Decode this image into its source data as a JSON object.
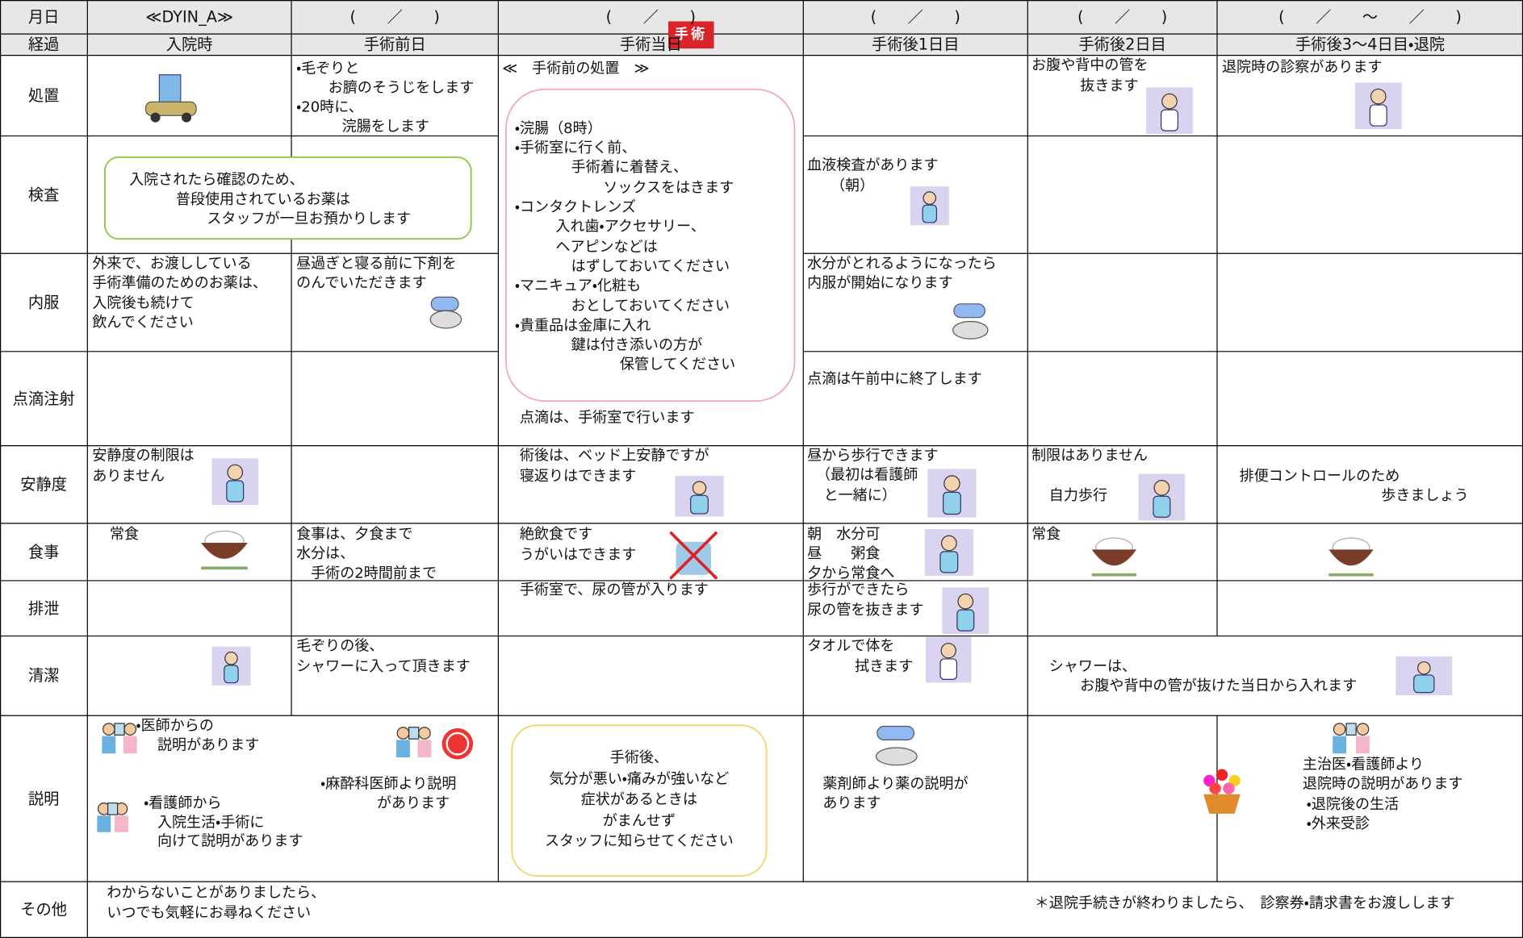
{
  "header": {
    "dates": [
      "月日",
      "≪DYIN_A≫",
      "(　　／　　)",
      "(　　／　　)",
      "(　　／　　)",
      "(　　／　　)",
      "(　　／　　～　　／　　)"
    ],
    "stages": [
      "経過",
      "入院時",
      "手術前日",
      "手術当日",
      "手術後1日目",
      "手術後2日目",
      "手術後3～4日目・退院"
    ],
    "badge": "手術"
  },
  "rows": [
    "処置",
    "検査",
    "内服",
    "点滴注射",
    "安静度",
    "食事",
    "排泄",
    "清潔",
    "説明",
    "その他"
  ],
  "notes": [
    [
      "・毛ぞりと",
      "お臍のそうじをします",
      "・20時に、",
      "浣腸をします"
    ],
    [
      "≪　手術前の処置　≫"
    ],
    [
      "お腹や背中の管を",
      "抜きます"
    ],
    [
      "退院時の診察があります"
    ],
    [
      "入院されたら確認のため、",
      "普段使用されているお薬は",
      "スタッフが一旦お預かりします"
    ],
    [
      "・浣腸（8時）",
      "・手術室に行く前、",
      "手術着に着替え、",
      "ソックスをはきます",
      "・コンタクトレンズ",
      "入れ歯・アクセサリー、",
      "ヘアピンなどは",
      "はずしておいてください",
      "・マニキュア・化粧も",
      "おとしておいてください",
      "・貴重品は金庫に入れ",
      "鍵は付き添いの方が",
      "保管してください"
    ],
    [
      "血液検査があります",
      "（朝）"
    ],
    [
      "外来で、お渡ししている",
      "手術準備のためのお薬は、",
      "入院後も続けて",
      "飲んでください"
    ],
    [
      "昼過ぎと寝る前に下剤を",
      "のんでいただきます"
    ],
    [
      "水分がとれるようになったら",
      "内服が開始になります"
    ],
    [
      "点滴は、手術室で行います"
    ],
    [
      "点滴は午前中に終了します"
    ],
    [
      "安静度の制限は",
      "ありません"
    ],
    [
      "術後は、ベッド上安静ですが",
      "寝返りはできます"
    ],
    [
      "昼から歩行できます",
      "（最初は看護師",
      "と一緒に）"
    ],
    [
      "制限はありません",
      "自力歩行"
    ],
    [
      "排便コントロールのため",
      "歩きましょう"
    ],
    [
      "常食"
    ],
    [
      "食事は、夕食まで",
      "水分は、",
      "手術の2時間前まで"
    ],
    [
      "絶飲食です",
      "うがいはできます"
    ],
    [
      "朝　水分可",
      "昼　　粥食",
      "夕から常食へ"
    ],
    [
      "常食"
    ],
    [
      "手術室で、尿の管が入ります"
    ],
    [
      "歩行ができたら",
      "尿の管を抜きます"
    ],
    [
      "毛ぞりの後、",
      "シャワーに入って頂きます"
    ],
    [
      "タオルで体を",
      "拭きます"
    ],
    [
      "シャワーは、",
      "お腹や背中の管が抜けた当日から入れます"
    ],
    [
      "・医師からの",
      "説明があります"
    ],
    [
      "・看護師から",
      "入院生活・手術に",
      "向けて説明があります"
    ],
    [
      "・麻酔科医師より説明",
      "があります"
    ],
    [
      "手術後、",
      "気分が悪い・痛みが強いなど",
      "症状があるときは",
      "がまんせず",
      "スタッフに知らせてください"
    ],
    [
      "薬剤師より薬の説明が",
      "あります"
    ],
    [
      "主治医・看護師より",
      "退院時の説明があります",
      "・退院後の生活",
      "・外来受診"
    ],
    [
      "わからないことがありましたら、",
      "いつでも気軽にお尋ねください"
    ],
    [
      "＊退院手続きが終わりましたら、　診察券・請求書をお渡しします"
    ]
  ]
}
